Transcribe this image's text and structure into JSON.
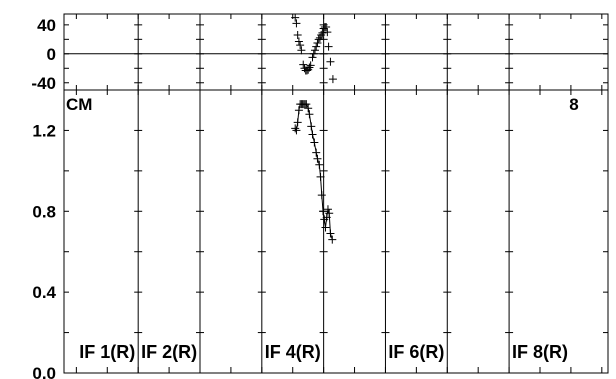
{
  "chart_data": {
    "type": "scatter",
    "panels": {
      "phase": {
        "ylim": [
          -50,
          55
        ],
        "yticks": [
          "40",
          "0",
          "-40"
        ],
        "zero_line": true,
        "points": [
          [
            4.04,
            50
          ],
          [
            4.06,
            42
          ],
          [
            4.08,
            26
          ],
          [
            4.1,
            17
          ],
          [
            4.12,
            12
          ],
          [
            4.14,
            5
          ],
          [
            4.17,
            -15
          ],
          [
            4.19,
            -20
          ],
          [
            4.21,
            -23
          ],
          [
            4.23,
            -23
          ],
          [
            4.25,
            -22
          ],
          [
            4.27,
            -19
          ],
          [
            4.29,
            -16
          ],
          [
            4.32,
            -5
          ],
          [
            4.34,
            0
          ],
          [
            4.36,
            5
          ],
          [
            4.38,
            10
          ],
          [
            4.4,
            15
          ],
          [
            4.42,
            20
          ],
          [
            4.44,
            22
          ],
          [
            4.46,
            26
          ],
          [
            4.48,
            29
          ],
          [
            4.5,
            35
          ],
          [
            4.52,
            37
          ],
          [
            4.54,
            37
          ],
          [
            4.56,
            30
          ],
          [
            4.58,
            10
          ],
          [
            4.61,
            -11
          ],
          [
            4.65,
            -35
          ]
        ]
      },
      "amplitude": {
        "ylim": [
          0.0,
          1.4
        ],
        "yticks": [
          "1.2",
          "0.8",
          "0.4",
          "0.0"
        ],
        "corner_left": "CM",
        "corner_right": "8",
        "points": [
          [
            4.04,
            1.21
          ],
          [
            4.06,
            1.2
          ],
          [
            4.08,
            1.24
          ],
          [
            4.1,
            1.3
          ],
          [
            4.12,
            1.33
          ],
          [
            4.14,
            1.33
          ],
          [
            4.16,
            1.33
          ],
          [
            4.18,
            1.33
          ],
          [
            4.2,
            1.33
          ],
          [
            4.22,
            1.33
          ],
          [
            4.25,
            1.31
          ],
          [
            4.27,
            1.28
          ],
          [
            4.3,
            1.22
          ],
          [
            4.32,
            1.18
          ],
          [
            4.35,
            1.14
          ],
          [
            4.38,
            1.09
          ],
          [
            4.4,
            1.06
          ],
          [
            4.43,
            1.03
          ],
          [
            4.45,
            0.97
          ],
          [
            4.47,
            0.88
          ],
          [
            4.49,
            0.8
          ],
          [
            4.51,
            0.76
          ],
          [
            4.53,
            0.72
          ],
          [
            4.55,
            0.77
          ],
          [
            4.57,
            0.81
          ],
          [
            4.59,
            0.79
          ],
          [
            4.61,
            0.69
          ],
          [
            4.64,
            0.66
          ]
        ]
      }
    },
    "xlim": [
      0.3,
      9.1
    ],
    "if_labels": [
      {
        "text": "IF 1(R)",
        "x": 1
      },
      {
        "text": "IF 2(R)",
        "x": 2
      },
      {
        "text": "IF 4(R)",
        "x": 4
      },
      {
        "text": "IF 6(R)",
        "x": 6
      },
      {
        "text": "IF 8(R)",
        "x": 8
      }
    ]
  }
}
